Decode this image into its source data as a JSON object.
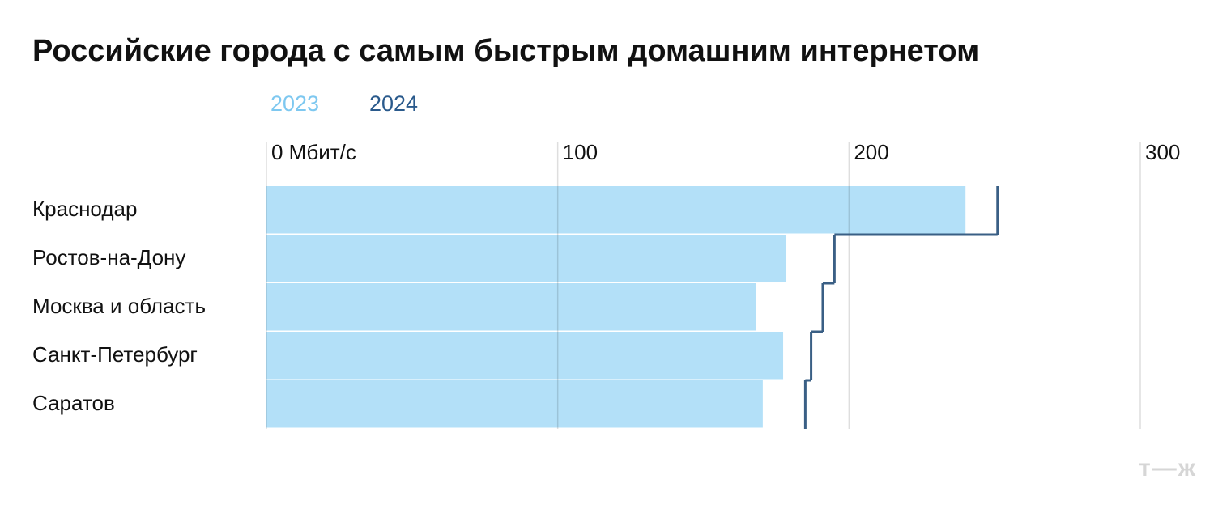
{
  "chart_data": {
    "type": "bar",
    "title": "Российские города с самым быстрым домашним интернетом",
    "categories": [
      "Краснодар",
      "Ростов-на-Дону",
      "Москва и область",
      "Санкт-Петербург",
      "Саратов"
    ],
    "series": [
      {
        "name": "2023",
        "color": "#b3e0f8",
        "values": [
          240,
          178.5,
          168,
          177.4,
          170.4
        ]
      },
      {
        "name": "2024",
        "color": "#3a5f85",
        "values": [
          251,
          195,
          191,
          187,
          185
        ]
      }
    ],
    "xlim": [
      0,
      300
    ],
    "xticks": [
      {
        "value": 0,
        "label": "0 Мбит/с"
      },
      100,
      200,
      300
    ],
    "grid": true,
    "logo": "т—ж"
  }
}
